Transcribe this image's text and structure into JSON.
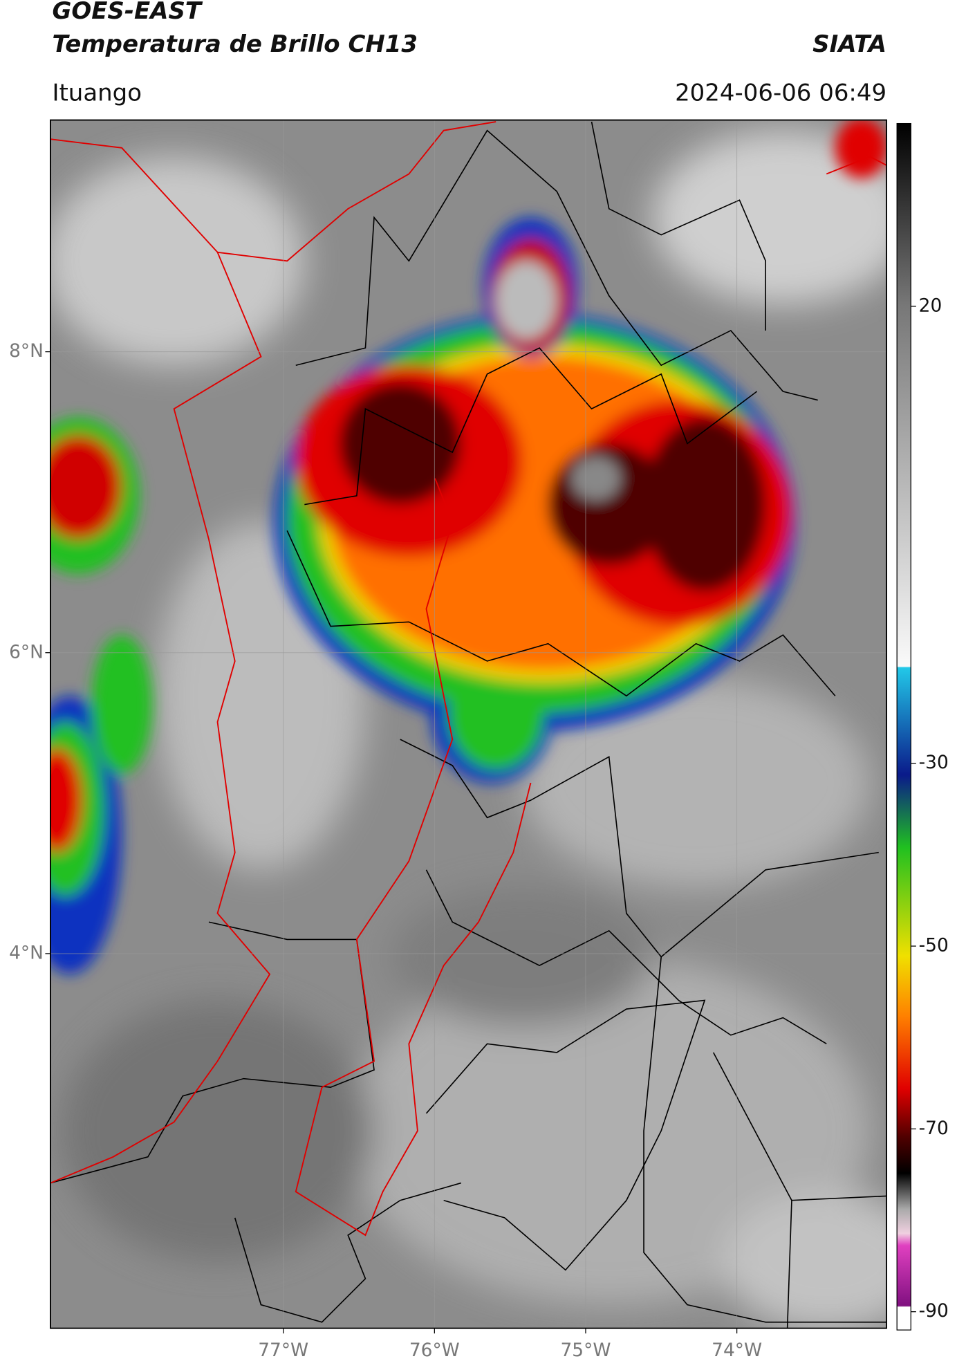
{
  "header": {
    "title": "GOES-EAST",
    "subtitle": "Temperatura de Brillo CH13",
    "brand": "SIATA",
    "location": "Ituango",
    "datetime": "2024-06-06 06:49"
  },
  "map": {
    "xlim": [
      -78.54,
      -73.01
    ],
    "ylim": [
      1.51,
      9.54
    ],
    "xticks": [
      {
        "value": -77,
        "label": "77°W"
      },
      {
        "value": -76,
        "label": "76°W"
      },
      {
        "value": -75,
        "label": "75°W"
      },
      {
        "value": -74,
        "label": "74°W"
      }
    ],
    "yticks": [
      {
        "value": 8,
        "label": "8°N"
      },
      {
        "value": 6,
        "label": "6°N"
      },
      {
        "value": 4,
        "label": "4°N"
      }
    ],
    "grid": true
  },
  "colorbar": {
    "lim": [
      -92,
      40
    ],
    "ticks": [
      20,
      -30,
      -50,
      -70,
      -90
    ]
  }
}
